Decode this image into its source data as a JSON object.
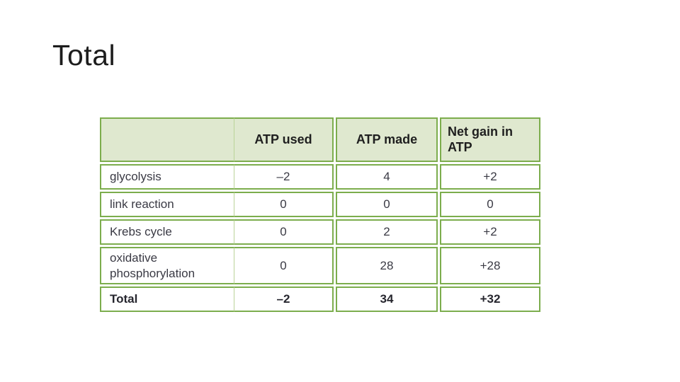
{
  "slide": {
    "title": "Total",
    "background_color": "#ffffff"
  },
  "table": {
    "border_color": "#7cad4d",
    "header_bg_color": "#dfe8cf",
    "header_text_color": "#1f1f1f",
    "body_text_color": "#3a3a44",
    "columns": {
      "c0": "",
      "c1": "ATP used",
      "c2": "ATP made",
      "c3": "Net gain in ATP"
    },
    "rows": [
      {
        "label": "glycolysis",
        "atp_used": "–2",
        "atp_made": "4",
        "net_gain": "+2"
      },
      {
        "label": "link reaction",
        "atp_used": "0",
        "atp_made": "0",
        "net_gain": "0"
      },
      {
        "label": "Krebs cycle",
        "atp_used": "0",
        "atp_made": "2",
        "net_gain": "+2"
      },
      {
        "label": "oxidative phosphorylation",
        "atp_used": "0",
        "atp_made": "28",
        "net_gain": "+28"
      },
      {
        "label": "Total",
        "atp_used": "–2",
        "atp_made": "34",
        "net_gain": "+32"
      }
    ]
  },
  "chart_data": {
    "type": "table",
    "title": "Total",
    "categories": [
      "glycolysis",
      "link reaction",
      "Krebs cycle",
      "oxidative phosphorylation",
      "Total"
    ],
    "series": [
      {
        "name": "ATP used",
        "values": [
          -2,
          0,
          0,
          0,
          -2
        ]
      },
      {
        "name": "ATP made",
        "values": [
          4,
          0,
          2,
          28,
          34
        ]
      },
      {
        "name": "Net gain in ATP",
        "values": [
          2,
          0,
          2,
          28,
          32
        ]
      }
    ]
  }
}
